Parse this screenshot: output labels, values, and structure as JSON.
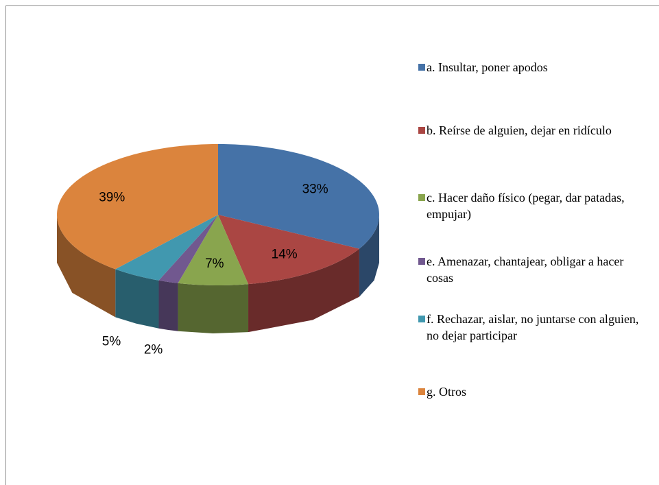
{
  "chart_data": {
    "type": "pie",
    "categories": [
      "a. Insultar, poner apodos",
      "b. Reírse de alguien, dejar en ridículo",
      "c. Hacer daño físico (pegar, dar patadas, empujar)",
      "e. Amenazar, chantajear, obligar a hacer cosas",
      "f. Rechazar, aislar, no juntarse con alguien, no dejar participar",
      "g. Otros"
    ],
    "values": [
      33,
      14,
      7,
      2,
      5,
      39
    ],
    "value_labels": [
      "33%",
      "14%",
      "7%",
      "2%",
      "5%",
      "39%"
    ],
    "colors": [
      "#4572a7",
      "#aa4643",
      "#89a54e",
      "#71588f",
      "#4198af",
      "#db843d"
    ],
    "legend": "right"
  }
}
